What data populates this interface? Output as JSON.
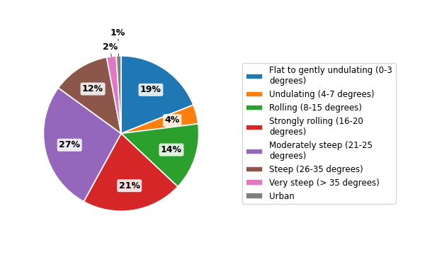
{
  "chart_data": {
    "type": "pie",
    "categories": [
      "Flat to gently undulating (0-3\ndegrees)",
      "Undulating (4-7 degrees)",
      "Rolling (8-15 degrees)",
      "Strongly rolling (16-20\ndegrees)",
      "Moderately steep (21-25\ndegrees)",
      "Steep (26-35 degrees)",
      "Very steep (> 35 degrees)",
      "Urban"
    ],
    "values": [
      19,
      4,
      14,
      21,
      27,
      12,
      2,
      1
    ],
    "value_labels": [
      "19%",
      "4%",
      "14%",
      "21%",
      "27%",
      "12%",
      "2%",
      "1%"
    ],
    "legend": "center left"
  }
}
